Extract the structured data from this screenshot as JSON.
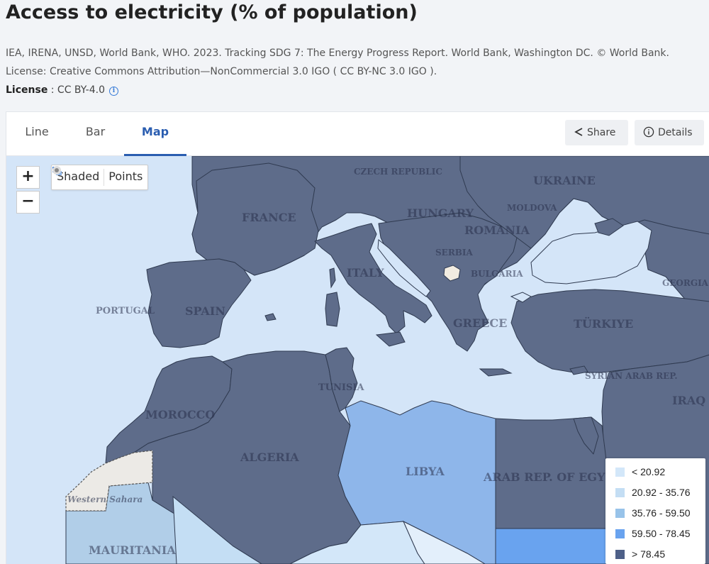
{
  "page": {
    "title": "Access to electricity (% of population)",
    "citation": "IEA, IRENA, UNSD, World Bank, WHO. 2023. Tracking SDG 7: The Energy Progress Report. World Bank, Washington DC. © World Bank. License: Creative Commons Attribution—NonCommercial 3.0 IGO ( CC BY-NC 3.0 IGO ).",
    "license_label": "License",
    "license_value": " : CC BY-4.0",
    "license_icon": "info-icon"
  },
  "tabs": [
    {
      "label": "Line",
      "active": false
    },
    {
      "label": "Bar",
      "active": false
    },
    {
      "label": "Map",
      "active": true
    }
  ],
  "toolbar": {
    "share_label": "Share",
    "share_icon": "share-icon",
    "details_label": "Details",
    "details_icon": "info-icon"
  },
  "map_controls": {
    "zoom_in": "+",
    "zoom_out": "−",
    "shaded_label": "Shaded",
    "points_label": "Points",
    "mode_selected": "Shaded"
  },
  "legend": [
    {
      "label": "< 20.92",
      "color": "#d3e7f9"
    },
    {
      "label": "20.92 - 35.76",
      "color": "#c4def4"
    },
    {
      "label": "35.76 - 59.50",
      "color": "#98c3e9"
    },
    {
      "label": "59.50 - 78.45",
      "color": "#69a3ef"
    },
    {
      "label": "> 78.45",
      "color": "#4e6088"
    }
  ],
  "map_colors": {
    "water": "#d4e5f8",
    "high_access": "#5e6c8a",
    "libya": "#8eb6ea",
    "mauritania": "#b1cee8",
    "no_data": "#eceae6",
    "border": "#2f3a50"
  },
  "country_labels": [
    "CZECH REPUBLIC",
    "UKRAINE",
    "MOLDOVA",
    "FRANCE",
    "HUNGARY",
    "ROMANIA",
    "SERBIA",
    "ITALY",
    "BULGARIA",
    "GEORGIA",
    "PORTUGAL",
    "SPAIN",
    "GREECE",
    "TÜRKIYE",
    "TUNISIA",
    "SYRIAN ARAB REP.",
    "IRAQ",
    "MOROCCO",
    "ALGERIA",
    "LIBYA",
    "ARAB REP. OF EGYPT",
    "Western Sahara",
    "MAURITANIA"
  ]
}
